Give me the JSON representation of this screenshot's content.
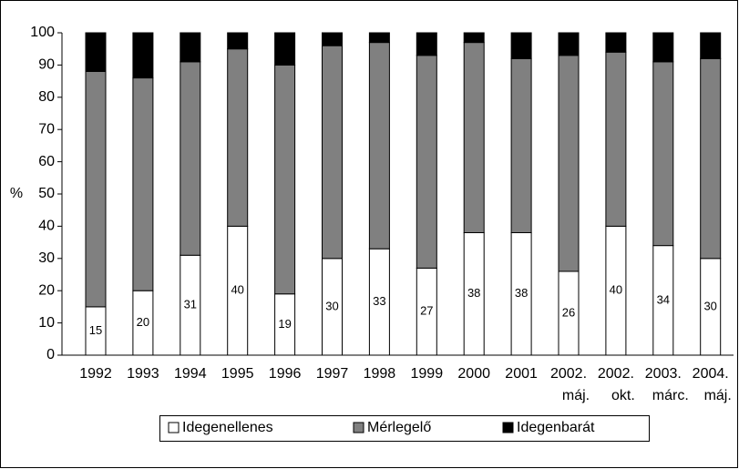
{
  "chart_data": {
    "type": "stacked_bar",
    "y_label": "%",
    "categories": [
      "1992",
      "1993",
      "1994",
      "1995",
      "1996",
      "1997",
      "1998",
      "1999",
      "2000",
      "2001",
      "2002. máj.",
      "2002. okt.",
      "2003. márc.",
      "2004. máj."
    ],
    "series": [
      {
        "name": "Idegenellenes",
        "color": "#ffffff",
        "values": [
          15,
          20,
          31,
          40,
          19,
          30,
          33,
          27,
          38,
          38,
          26,
          40,
          34,
          30
        ],
        "show_labels": true
      },
      {
        "name": "Mérlegelő",
        "color": "#808080",
        "values": [
          73,
          66,
          60,
          55,
          71,
          66,
          64,
          66,
          59,
          54,
          67,
          54,
          57,
          62
        ]
      },
      {
        "name": "Idegenbarát",
        "color": "#000000",
        "values": [
          12,
          14,
          9,
          5,
          10,
          4,
          3,
          7,
          3,
          8,
          7,
          6,
          9,
          8
        ]
      }
    ],
    "ylim": [
      0,
      100
    ],
    "yticks": [
      0,
      10,
      20,
      30,
      40,
      50,
      60,
      70,
      80,
      90,
      100
    ],
    "legend": "bottom"
  }
}
